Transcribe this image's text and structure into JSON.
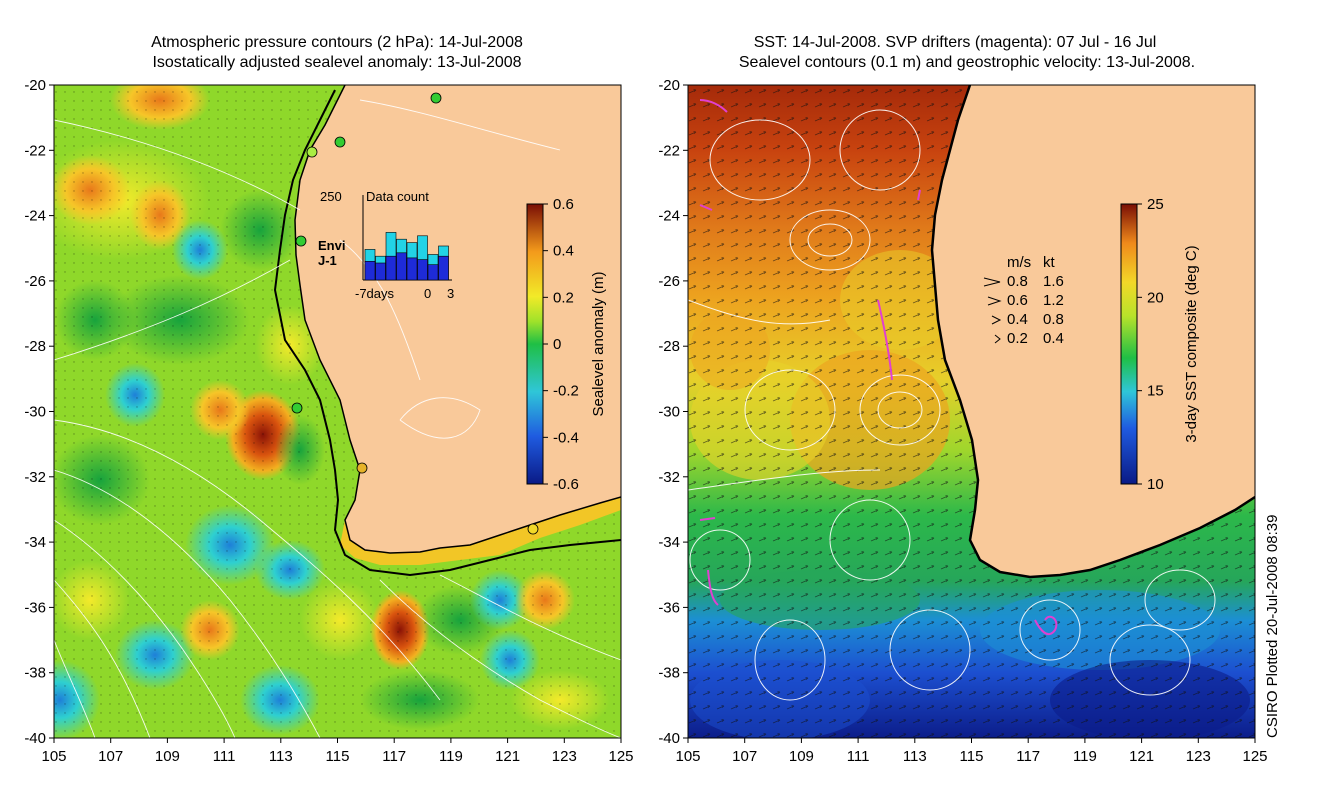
{
  "left_panel": {
    "title_line1": "Atmospheric pressure contours (2 hPa): 14-Jul-2008",
    "title_line2": "Isostatically adjusted sealevel anomaly: 13-Jul-2008",
    "colorbar": {
      "label": "Sealevel anomaly (m)",
      "min": -0.6,
      "max": 0.6,
      "ticks": [
        "0.6",
        "0.4",
        "0.2",
        "0",
        "-0.2",
        "-0.4",
        "-0.6"
      ]
    },
    "data_count": {
      "title": "Data count",
      "ymax_label": "250",
      "xlabels": [
        "-7days",
        "0",
        "3"
      ],
      "legend": [
        {
          "label": "Envi",
          "color": "#22d3e6"
        },
        {
          "label": "J-1",
          "color": "#1e2bd8"
        }
      ],
      "bars_envi": [
        90,
        70,
        140,
        120,
        110,
        130,
        75,
        100
      ],
      "bars_j1": [
        55,
        50,
        70,
        80,
        65,
        60,
        45,
        70
      ]
    }
  },
  "right_panel": {
    "title_line1": "SST: 14-Jul-2008. SVP drifters (magenta): 07 Jul - 16 Jul",
    "title_line2": "Sealevel contours (0.1 m) and geostrophic velocity: 13-Jul-2008.",
    "colorbar": {
      "label": "3-day SST composite (deg C)",
      "min": 10,
      "max": 25,
      "ticks": [
        "25",
        "20",
        "15",
        "10"
      ]
    },
    "velocity_legend": {
      "header_ms": "m/s",
      "header_kt": "kt",
      "rows": [
        {
          "ms": "0.8",
          "kt": "1.6"
        },
        {
          "ms": "0.6",
          "kt": "1.2"
        },
        {
          "ms": "0.4",
          "kt": "0.8"
        },
        {
          "ms": "0.2",
          "kt": "0.4"
        }
      ]
    }
  },
  "axes": {
    "lat_labels": [
      "-20",
      "-22",
      "-24",
      "-26",
      "-28",
      "-30",
      "-32",
      "-34",
      "-36",
      "-38",
      "-40"
    ],
    "lon_labels": [
      "105",
      "107",
      "109",
      "111",
      "113",
      "115",
      "117",
      "119",
      "121",
      "123",
      "125"
    ]
  },
  "footer": {
    "credit": "CSIRO Plotted 20-Jul-2008 08:39"
  },
  "colors": {
    "land": "#f9c99a",
    "coast": "#000000",
    "drifter": "#e040d0"
  }
}
